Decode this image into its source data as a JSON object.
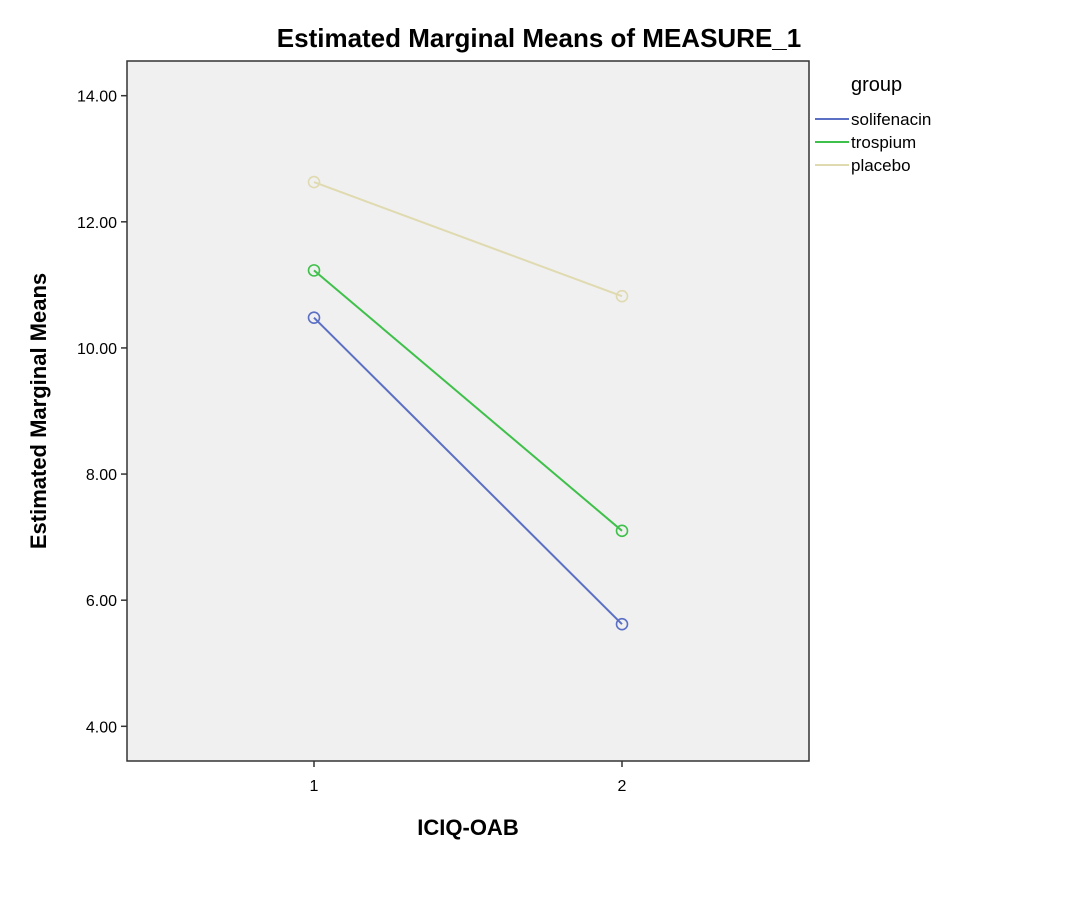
{
  "chart_data": {
    "type": "line",
    "title": "Estimated Marginal Means of MEASURE_1",
    "xlabel": "ICIQ-OAB",
    "ylabel": "Estimated Marginal Means",
    "categories": [
      "1",
      "2"
    ],
    "ylim": [
      3.45,
      14.55
    ],
    "yticks": [
      4,
      6,
      8,
      10,
      12,
      14
    ],
    "ytick_labels": [
      "4.00",
      "6.00",
      "8.00",
      "10.00",
      "12.00",
      "14.00"
    ],
    "grid": false,
    "plot_background": "#f0f0f0",
    "marker": "open-circle",
    "legend": {
      "title": "group",
      "placement": "right-outside"
    },
    "series": [
      {
        "name": "solifenacin",
        "color": "#5b6fc4",
        "values": [
          10.48,
          5.62
        ]
      },
      {
        "name": "trospium",
        "color": "#3fc04a",
        "values": [
          11.23,
          7.1
        ]
      },
      {
        "name": "placebo",
        "color": "#e0dab0",
        "values": [
          12.63,
          10.82
        ]
      }
    ]
  }
}
